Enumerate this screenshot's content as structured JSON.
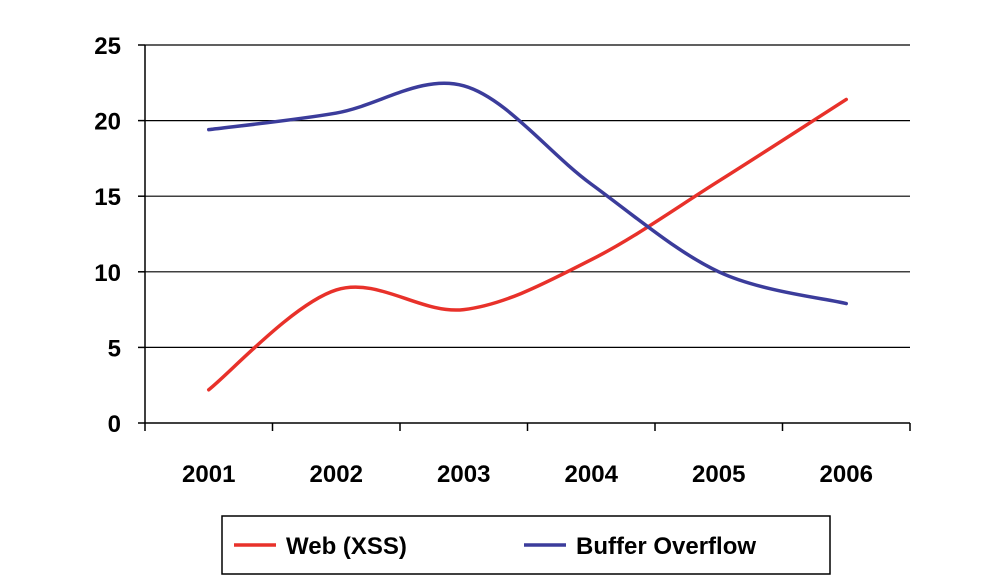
{
  "chart_data": {
    "type": "line",
    "title": "",
    "xlabel": "",
    "ylabel": "",
    "categories": [
      "2001",
      "2002",
      "2003",
      "2004",
      "2005",
      "2006"
    ],
    "ylim": [
      0,
      25
    ],
    "yticks": [
      0,
      5,
      10,
      15,
      20,
      25
    ],
    "y_tick_labels": [
      "0",
      "5",
      "10",
      "15",
      "20",
      "25"
    ],
    "grid": "horizontal",
    "legend_position": "bottom",
    "series": [
      {
        "name": "Web (XSS)",
        "color": "#e8312a",
        "values": [
          2.2,
          8.8,
          7.5,
          10.8,
          16.0,
          21.4
        ]
      },
      {
        "name": "Buffer Overflow",
        "color": "#3b3c9b",
        "values": [
          19.4,
          20.5,
          22.3,
          15.8,
          10.0,
          7.9
        ]
      }
    ]
  }
}
